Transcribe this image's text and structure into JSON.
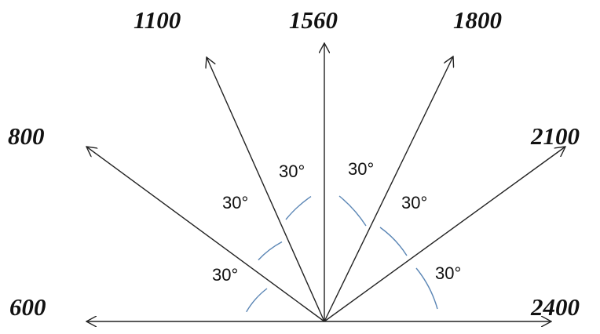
{
  "ray_labels": [
    "600",
    "800",
    "1100",
    "1560",
    "1800",
    "2100",
    "2400"
  ],
  "angle_labels": [
    "30°",
    "30°",
    "30°",
    "30°",
    "30°",
    "30°"
  ]
}
